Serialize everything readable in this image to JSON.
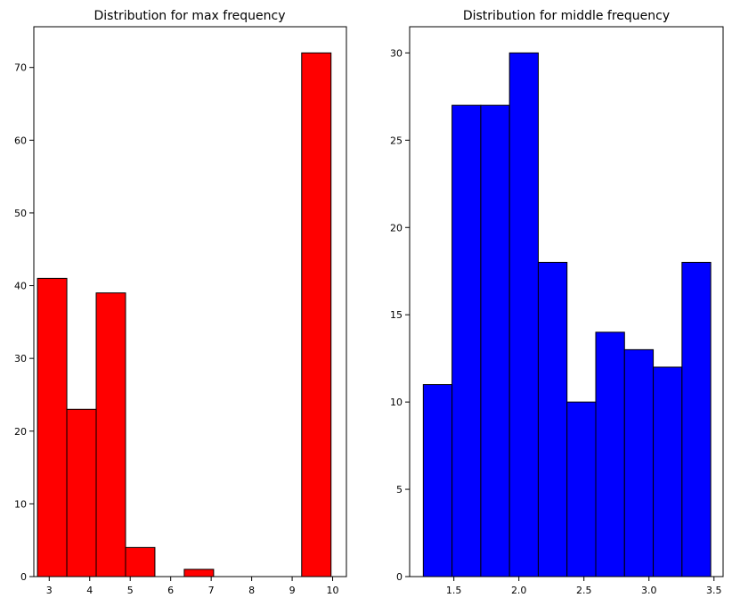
{
  "chart_data": [
    {
      "type": "bar",
      "title": "Distribution for max frequency",
      "xlabel": "",
      "ylabel": "",
      "bar_color": "#ff0000",
      "edge_color": "#000000",
      "xlim": [
        2.62,
        10.34
      ],
      "ylim": [
        0,
        75.6
      ],
      "bin_edges": [
        2.71,
        3.435,
        4.16,
        4.885,
        5.61,
        6.335,
        7.06,
        7.785,
        8.51,
        9.235,
        9.96
      ],
      "values": [
        41,
        23,
        39,
        4,
        0,
        1,
        0,
        0,
        0,
        72
      ],
      "x_ticks": [
        3,
        4,
        5,
        6,
        7,
        8,
        9,
        10
      ],
      "y_ticks": [
        0,
        10,
        20,
        30,
        40,
        50,
        60,
        70
      ],
      "grid": false
    },
    {
      "type": "bar",
      "title": "Distribution for middle frequency",
      "xlabel": "",
      "ylabel": "",
      "bar_color": "#0000ff",
      "edge_color": "#000000",
      "xlim": [
        1.16,
        3.57
      ],
      "ylim": [
        0,
        31.5
      ],
      "bin_edges": [
        1.265,
        1.486,
        1.707,
        1.928,
        2.149,
        2.37,
        2.591,
        2.812,
        3.033,
        3.254,
        3.475
      ],
      "values": [
        11,
        27,
        27,
        30,
        18,
        10,
        14,
        13,
        12,
        18
      ],
      "x_ticks": [
        1.5,
        2.0,
        2.5,
        3.0,
        3.5
      ],
      "x_tick_labels": [
        "1.5",
        "2.0",
        "2.5",
        "3.0",
        "3.5"
      ],
      "y_ticks": [
        0,
        5,
        10,
        15,
        20,
        25,
        30
      ],
      "grid": false
    }
  ]
}
